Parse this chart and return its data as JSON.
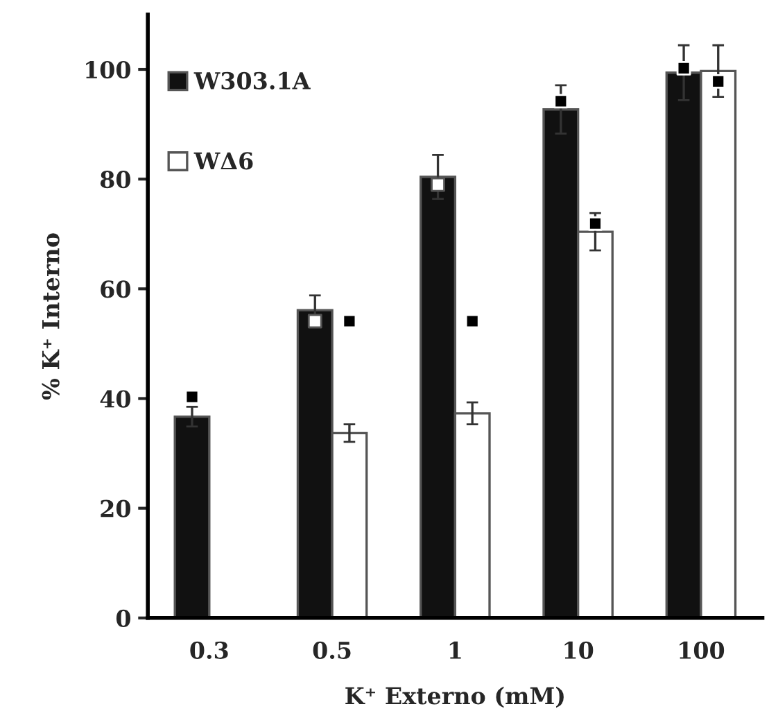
{
  "chart_data": {
    "type": "bar",
    "xlabel": "K⁺ Externo (mM)",
    "ylabel": "% K⁺ Interno",
    "categories": [
      "0.3",
      "0.5",
      "1",
      "10",
      "100"
    ],
    "ylim": [
      0,
      110
    ],
    "yticks": [
      0,
      20,
      40,
      60,
      80,
      100
    ],
    "grid": false,
    "legend": "top left",
    "series": [
      {
        "name": "W303.1A",
        "color": "#111111",
        "values": [
          36.7,
          56.1,
          80.4,
          92.7,
          99.4
        ],
        "errors": [
          1.8,
          2.7,
          4,
          4.4,
          5
        ]
      },
      {
        "name": "WΔ6",
        "color": "#ffffff",
        "values": [
          null,
          33.7,
          37.3,
          70.4,
          99.7
        ],
        "errors": [
          null,
          1.6,
          2,
          3.4,
          4.7
        ]
      },
      {
        "type": "scatter",
        "marker": "square",
        "x": [
          "0.3",
          "0.5",
          "1",
          "10",
          "100"
        ],
        "values": [
          40.3,
          54.1,
          79,
          94.2,
          100.2
        ],
        "colors": [
          "#000000",
          "#ffffff",
          "#ffffff",
          "#000000",
          "#000000"
        ]
      },
      {
        "type": "scatter",
        "marker": "square",
        "x": [
          "0.3",
          "0.5",
          "1",
          "10",
          "100"
        ],
        "values": [
          null,
          54.1,
          54.1,
          71.9,
          97.8
        ],
        "colors": [
          "#000000",
          "#000000",
          "#000000",
          "#000000",
          "#000000"
        ]
      }
    ]
  }
}
